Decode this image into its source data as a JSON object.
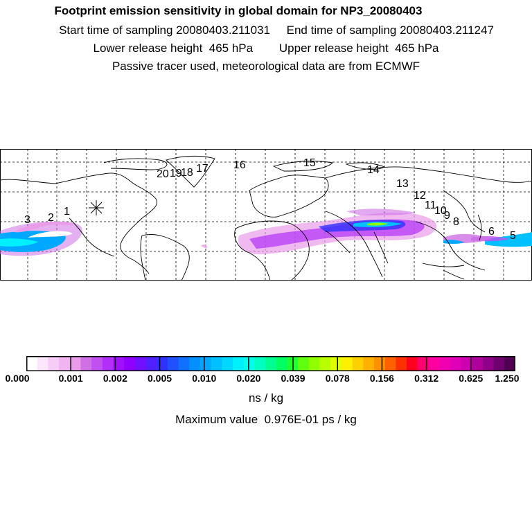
{
  "title": {
    "main": "Footprint emission sensitivity in global domain for NP3_20080403",
    "line2": "Start time of sampling 20080403.211031     End time of sampling 20080403.211247",
    "line3": "Lower release height  465 hPa        Upper release height  465 hPa",
    "line4": "Passive tracer used, meteorological data are from ECMWF"
  },
  "colorbar": {
    "tick_labels": [
      "0.000",
      "0.001",
      "0.002",
      "0.005",
      "0.010",
      "0.020",
      "0.039",
      "0.078",
      "0.156",
      "0.312",
      "0.625",
      "1.250"
    ],
    "colors": [
      "#ffffff",
      "#fbe6fb",
      "#f6cdf6",
      "#f0b4f0",
      "#ea9bea",
      "#d070e6",
      "#c050f0",
      "#b030f8",
      "#a010ff",
      "#9000ff",
      "#7010ff",
      "#5020ff",
      "#3030ff",
      "#2050ff",
      "#1070ff",
      "#0090ff",
      "#00a8ff",
      "#00c0ff",
      "#00d8ff",
      "#00f0ff",
      "#00ffe8",
      "#00ffc0",
      "#00ff90",
      "#00ff60",
      "#20ff30",
      "#60ff10",
      "#90ff00",
      "#b8ff00",
      "#e0ff00",
      "#fff000",
      "#ffd000",
      "#ffb000",
      "#ff9000",
      "#ff6000",
      "#ff3000",
      "#ff0020",
      "#ff0070",
      "#ff00a0",
      "#f000b0",
      "#e000b8",
      "#cc00b0",
      "#b0009c",
      "#900088",
      "#700070",
      "#500050"
    ],
    "units": "ns / kg",
    "max_value_text": "Maximum value  0.976E-01 ps / kg"
  },
  "map": {
    "trajectory_labels": [
      "1",
      "2",
      "3",
      "5",
      "6",
      "8",
      "9",
      "10",
      "11",
      "12",
      "13",
      "14",
      "15",
      "16",
      "17",
      "18",
      "19",
      "20"
    ],
    "release_marker": "release-point-star",
    "land_color": "#ffffff",
    "grid_style": "dashed"
  }
}
